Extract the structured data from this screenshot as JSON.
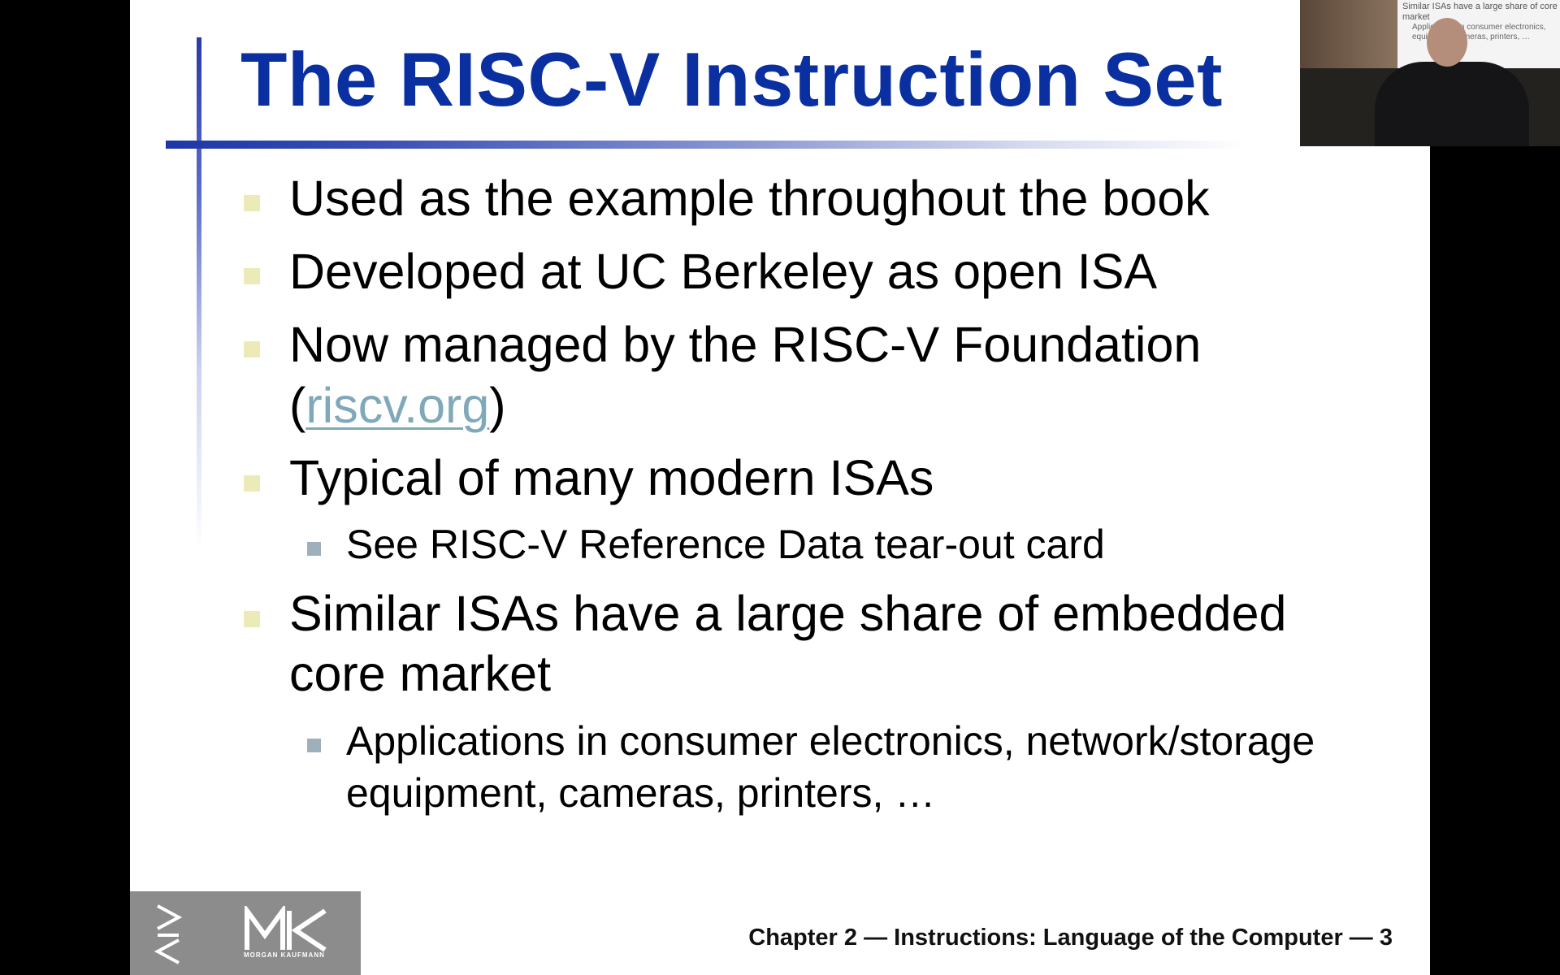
{
  "slide": {
    "title": "The RISC-V Instruction Set",
    "bullets": [
      {
        "level": 1,
        "lines": [
          "Used as the example throughout the book"
        ]
      },
      {
        "level": 1,
        "lines": [
          "Developed at UC Berkeley as open ISA"
        ]
      },
      {
        "level": 1,
        "lines": [
          "Now managed by the RISC-V Foundation"
        ],
        "paren_open": "(",
        "link_text": "riscv.org",
        "paren_close": ")"
      },
      {
        "level": 1,
        "lines": [
          "Typical of many modern ISAs"
        ]
      },
      {
        "level": 2,
        "lines": [
          "See RISC-V Reference Data tear-out card"
        ]
      },
      {
        "level": 1,
        "lines": [
          "Similar ISAs have a large share of embedded",
          "core market"
        ]
      },
      {
        "level": 2,
        "lines": [
          "Applications in consumer electronics, network/storage",
          "equipment, cameras, printers, …"
        ]
      }
    ],
    "footer": "Chapter 2 — Instructions: Language of the Computer — 3",
    "logo": {
      "name": "Morgan Kaufmann",
      "publisher_text": "MORGAN KAUFMANN"
    },
    "colors": {
      "title": "#0a2fa0",
      "bullet_l1": "#ecebb8",
      "bullet_l2": "#9fb0bd",
      "link": "#7fa9b8"
    }
  },
  "webcam": {
    "screen_text_1": "Similar ISAs have a large share of core market",
    "screen_text_2": "Applications in consumer electronics, equipment, cameras, printers, …"
  }
}
